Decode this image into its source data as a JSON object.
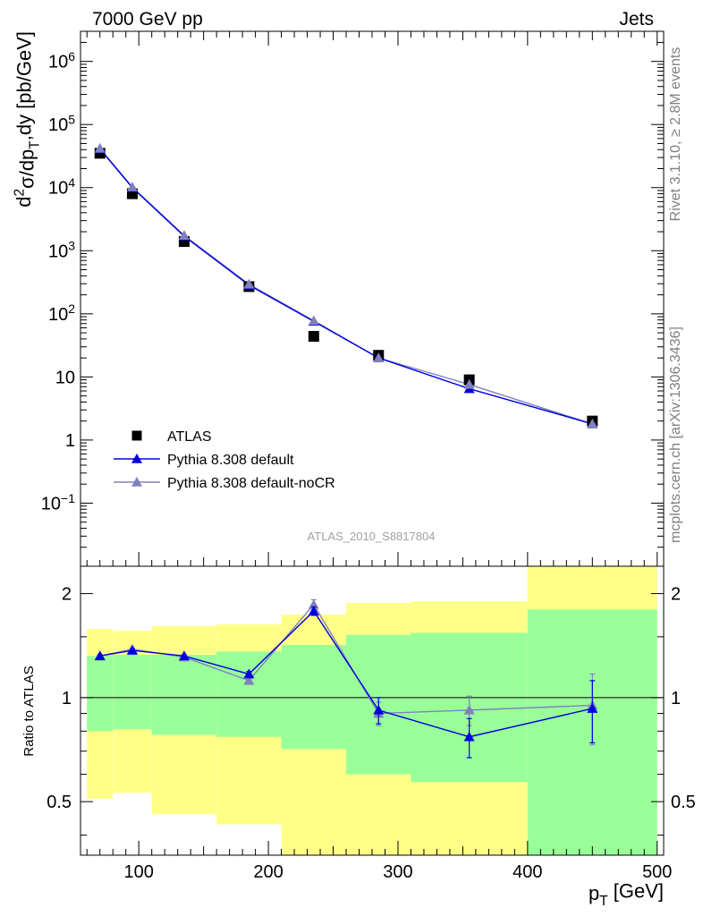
{
  "header": {
    "left_label": "7000 GeV pp",
    "right_label": "Jets"
  },
  "side_labels": {
    "rivet": "Rivet 3.1.10, ≥ 2.8M events",
    "mcplots": "mcplots.cern.ch [arXiv:1306.3436]"
  },
  "analysis_id": "ATLAS_2010_S8817804",
  "colors": {
    "data": "#000000",
    "default": "#0000dd",
    "nocr": "#8080c0",
    "band_inner": "#99ff99",
    "band_outer": "#ffff88"
  },
  "chart_data": [
    {
      "type": "scatter",
      "panel": "main",
      "ylabel": "d²σ/dp_T,dy [pb/GeV]",
      "yscale": "log",
      "ylim": [
        0.01,
        3000000
      ],
      "xlim": [
        55,
        505
      ],
      "y_tick_labels": [
        "10^6",
        "10^5",
        "10^4",
        "10^3",
        "10^2",
        "10",
        "1",
        "10^-1"
      ],
      "legend": "bottom-left",
      "series": [
        {
          "name": "ATLAS",
          "marker": "square",
          "x": [
            70,
            95,
            135,
            185,
            235,
            285,
            355,
            450
          ],
          "y": [
            35000,
            8000,
            1400,
            270,
            44,
            22,
            9,
            2.0
          ]
        },
        {
          "name": "Pythia 8.308 default",
          "marker": "triangle",
          "x": [
            70,
            95,
            135,
            185,
            235,
            285,
            355,
            450
          ],
          "y": [
            41000,
            10000,
            1700,
            285,
            76,
            20,
            6.5,
            1.8
          ]
        },
        {
          "name": "Pythia 8.308 default-noCR",
          "marker": "triangle",
          "x": [
            70,
            95,
            135,
            185,
            235,
            285,
            355,
            450
          ],
          "y": [
            42000,
            10200,
            1750,
            295,
            78,
            20,
            7.6,
            1.8
          ]
        }
      ]
    },
    {
      "type": "line",
      "panel": "ratio",
      "ylabel": "Ratio to ATLAS",
      "xlabel": "p_T [GeV]",
      "yscale": "log",
      "ylim": [
        0.35,
        2.4
      ],
      "xlim": [
        55,
        505
      ],
      "x_ticks": [
        100,
        200,
        300,
        400,
        500
      ],
      "y_ticks": [
        0.5,
        1,
        2
      ],
      "bands": [
        {
          "x0": 60,
          "x1": 80,
          "inner": [
            0.8,
            1.32
          ],
          "outer": [
            0.51,
            1.58
          ]
        },
        {
          "x0": 80,
          "x1": 110,
          "inner": [
            0.81,
            1.33
          ],
          "outer": [
            0.53,
            1.56
          ]
        },
        {
          "x0": 110,
          "x1": 160,
          "inner": [
            0.78,
            1.33
          ],
          "outer": [
            0.46,
            1.61
          ]
        },
        {
          "x0": 160,
          "x1": 210,
          "inner": [
            0.77,
            1.36
          ],
          "outer": [
            0.43,
            1.63
          ]
        },
        {
          "x0": 210,
          "x1": 260,
          "inner": [
            0.71,
            1.42
          ],
          "outer": [
            0.33,
            1.74
          ]
        },
        {
          "x0": 260,
          "x1": 310,
          "inner": [
            0.6,
            1.52
          ],
          "outer": [
            0.33,
            1.88
          ]
        },
        {
          "x0": 310,
          "x1": 400,
          "inner": [
            0.57,
            1.54
          ],
          "outer": [
            0.33,
            1.9
          ]
        },
        {
          "x0": 400,
          "x1": 500,
          "inner": [
            0.33,
            1.8
          ],
          "outer": [
            0.33,
            2.4
          ]
        }
      ],
      "series": [
        {
          "name": "Pythia 8.308 default",
          "x": [
            70,
            95,
            135,
            185,
            235,
            285,
            355,
            450
          ],
          "y": [
            1.32,
            1.37,
            1.32,
            1.17,
            1.78,
            0.92,
            0.77,
            0.93
          ],
          "err": [
            0.01,
            0.01,
            0.01,
            0.02,
            0.05,
            0.08,
            0.1,
            0.19
          ]
        },
        {
          "name": "Pythia 8.308 default-noCR",
          "x": [
            70,
            95,
            135,
            185,
            235,
            285,
            355,
            450
          ],
          "y": [
            1.32,
            1.38,
            1.31,
            1.12,
            1.86,
            0.9,
            0.92,
            0.95
          ],
          "err": [
            0.01,
            0.01,
            0.01,
            0.02,
            0.06,
            0.07,
            0.09,
            0.22
          ]
        }
      ]
    }
  ]
}
